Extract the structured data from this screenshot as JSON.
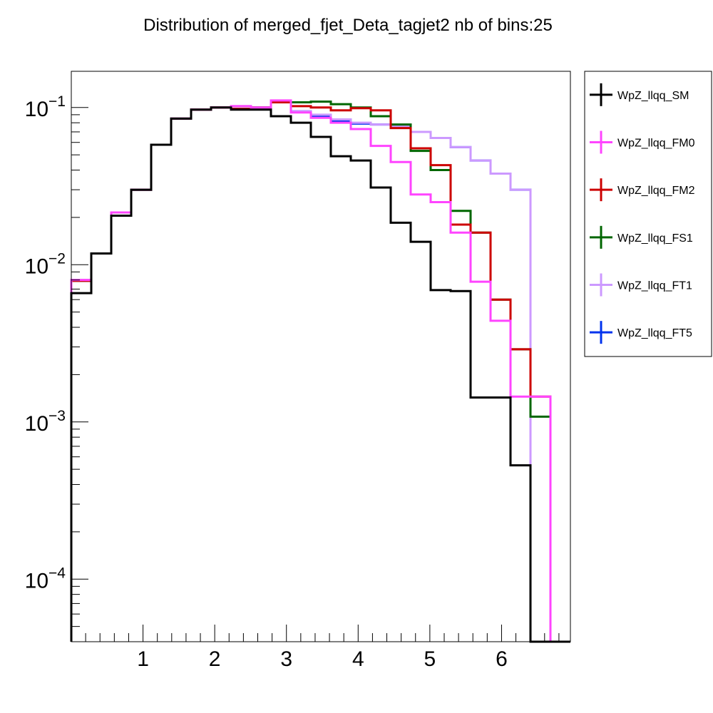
{
  "chart_data": {
    "type": "line",
    "title": "Distribution of merged_fjet_Deta_tagjet2 nb of bins:25",
    "xlabel": "",
    "ylabel": "",
    "xlim": [
      0,
      6.96
    ],
    "ylim": [
      4e-05,
      0.17
    ],
    "yscale": "log",
    "grid": false,
    "legend_position": "right",
    "bin_edges": [
      0,
      0.2784,
      0.5568,
      0.8352,
      1.1136,
      1.392,
      1.6704,
      1.9488,
      2.2272,
      2.5056,
      2.784,
      3.0624,
      3.3408,
      3.6192,
      3.8976,
      4.176,
      4.4544,
      4.7328,
      5.0112,
      5.2896,
      5.568,
      5.8464,
      6.1248,
      6.4032,
      6.6816,
      6.96
    ],
    "x_ticks": [
      {
        "value": 1,
        "label": "1"
      },
      {
        "value": 2,
        "label": "2"
      },
      {
        "value": 3,
        "label": "3"
      },
      {
        "value": 4,
        "label": "4"
      },
      {
        "value": 5,
        "label": "5"
      },
      {
        "value": 6,
        "label": "6"
      }
    ],
    "y_ticks": [
      {
        "value": 0.1,
        "base": "10",
        "exp": "−1"
      },
      {
        "value": 0.01,
        "base": "10",
        "exp": "−2"
      },
      {
        "value": 0.001,
        "base": "10",
        "exp": "−3"
      },
      {
        "value": 0.0001,
        "base": "10",
        "exp": "−4"
      }
    ],
    "series": [
      {
        "name": "WpZ_llqq_FT5",
        "color": "#0033ee",
        "values": [
          0.0079,
          0.0118,
          0.0215,
          0.03,
          0.058,
          0.085,
          0.097,
          0.1,
          0.098,
          0.1,
          0.108,
          0.094,
          0.088,
          0.082,
          0.079,
          0.078,
          0.076,
          0.07,
          0.064,
          0.056,
          0.046,
          0.038,
          0.03,
          0.0,
          0.0
        ]
      },
      {
        "name": "WpZ_llqq_FT1",
        "color": "#cc99ff",
        "values": [
          0.008,
          0.0118,
          0.0215,
          0.03,
          0.058,
          0.085,
          0.097,
          0.1,
          0.102,
          0.1,
          0.108,
          0.095,
          0.09,
          0.084,
          0.08,
          0.078,
          0.076,
          0.07,
          0.064,
          0.056,
          0.046,
          0.038,
          0.03,
          0.0,
          0.0
        ]
      },
      {
        "name": "WpZ_llqq_FS1",
        "color": "#006600",
        "values": [
          0.0079,
          0.0118,
          0.0215,
          0.03,
          0.058,
          0.085,
          0.097,
          0.1,
          0.098,
          0.1,
          0.108,
          0.108,
          0.109,
          0.105,
          0.1,
          0.088,
          0.078,
          0.053,
          0.04,
          0.022,
          0.016,
          0.006,
          0.0029,
          0.00108,
          0.0
        ]
      },
      {
        "name": "WpZ_llqq_FM2",
        "color": "#cc0000",
        "values": [
          0.0079,
          0.0118,
          0.0215,
          0.03,
          0.058,
          0.085,
          0.097,
          0.1,
          0.098,
          0.1,
          0.108,
          0.102,
          0.1,
          0.096,
          0.099,
          0.096,
          0.074,
          0.055,
          0.043,
          0.018,
          0.016,
          0.006,
          0.0029,
          0.00145,
          0.0
        ]
      },
      {
        "name": "WpZ_llqq_FM0",
        "color": "#ff44ff",
        "values": [
          0.008,
          0.0118,
          0.0215,
          0.03,
          0.058,
          0.085,
          0.097,
          0.1,
          0.102,
          0.1,
          0.111,
          0.093,
          0.086,
          0.08,
          0.073,
          0.057,
          0.045,
          0.028,
          0.025,
          0.016,
          0.0078,
          0.0044,
          0.00145,
          0.00145,
          0.0
        ]
      },
      {
        "name": "WpZ_llqq_SM",
        "color": "#000000",
        "values": [
          0.0066,
          0.0118,
          0.0205,
          0.03,
          0.058,
          0.085,
          0.097,
          0.1,
          0.097,
          0.097,
          0.088,
          0.08,
          0.065,
          0.049,
          0.046,
          0.031,
          0.0185,
          0.014,
          0.0069,
          0.0068,
          0.00143,
          0.00143,
          0.00053,
          0.0,
          0.0
        ]
      }
    ],
    "legend_order": [
      "WpZ_llqq_SM",
      "WpZ_llqq_FM0",
      "WpZ_llqq_FM2",
      "WpZ_llqq_FS1",
      "WpZ_llqq_FT1",
      "WpZ_llqq_FT5"
    ]
  }
}
